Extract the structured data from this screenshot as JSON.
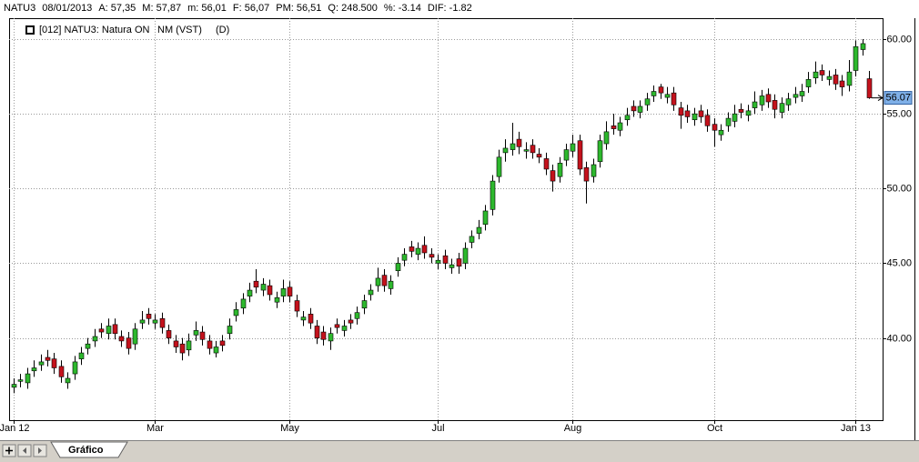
{
  "header": {
    "items": [
      "NATU3",
      "08/01/2013",
      "A: 57,35",
      "M: 57,87",
      "m: 56,01",
      "F: 56,07",
      "PM: 56,51",
      "Q: 248.500",
      "%: -3.14",
      "DIF: -1.82"
    ]
  },
  "tab": "Gráfico",
  "chart_data": {
    "type": "candlestick",
    "legend": [
      "[012] NATU3: Natura ON",
      "NM (VST)",
      "(D)"
    ],
    "categories": [
      "Jan 12",
      null,
      null,
      null,
      null,
      null,
      null,
      null,
      null,
      null,
      null,
      null,
      null,
      null,
      null,
      null,
      null,
      null,
      null,
      null,
      null,
      "Mar",
      null,
      null,
      null,
      null,
      null,
      null,
      null,
      null,
      null,
      null,
      null,
      null,
      null,
      null,
      null,
      null,
      null,
      null,
      null,
      "May",
      null,
      null,
      null,
      null,
      null,
      null,
      null,
      null,
      null,
      null,
      null,
      null,
      null,
      null,
      null,
      null,
      null,
      null,
      null,
      null,
      null,
      "Jul",
      null,
      null,
      null,
      null,
      null,
      null,
      null,
      null,
      null,
      null,
      null,
      null,
      null,
      null,
      null,
      null,
      null,
      null,
      null,
      "Aug",
      null,
      null,
      null,
      null,
      null,
      null,
      null,
      null,
      null,
      null,
      null,
      null,
      null,
      null,
      null,
      null,
      null,
      null,
      null,
      null,
      "Oct",
      null,
      null,
      null,
      null,
      null,
      null,
      null,
      null,
      null,
      null,
      null,
      null,
      null,
      null,
      null,
      null,
      null,
      null,
      null,
      null,
      "Jan 13",
      null,
      null
    ],
    "open": [
      36.7,
      37.1,
      37.0,
      37.8,
      38.2,
      38.7,
      38.6,
      38.1,
      37.0,
      37.6,
      38.6,
      39.3,
      39.8,
      40.6,
      40.3,
      40.9,
      40.1,
      40.0,
      39.6,
      41.0,
      41.6,
      41.0,
      41.3,
      40.5,
      39.8,
      39.6,
      39.2,
      40.2,
      40.4,
      39.8,
      39.0,
      39.8,
      40.3,
      41.5,
      42.0,
      42.8,
      43.8,
      43.2,
      43.5,
      42.4,
      42.8,
      43.4,
      42.5,
      41.2,
      41.6,
      40.8,
      40.4,
      39.8,
      40.9,
      40.5,
      41.2,
      41.3,
      42.0,
      42.9,
      43.5,
      44.2,
      43.3,
      44.5,
      45.2,
      46.1,
      45.6,
      46.2,
      45.6,
      45.0,
      45.5,
      44.7,
      45.3,
      45.0,
      46.4,
      47.0,
      47.6,
      48.6,
      50.8,
      52.4,
      52.6,
      53.3,
      52.5,
      52.9,
      52.3,
      52.0,
      51.2,
      50.8,
      51.9,
      52.5,
      53.2,
      51.4,
      50.8,
      51.8,
      53.0,
      54.2,
      53.9,
      54.6,
      55.5,
      55.1,
      55.6,
      56.2,
      56.8,
      56.1,
      56.4,
      55.4,
      55.2,
      54.6,
      55.2,
      54.9,
      54.3,
      53.6,
      54.2,
      54.5,
      55.3,
      54.9,
      55.4,
      55.6,
      56.3,
      55.9,
      55.1,
      55.6,
      56.1,
      56.2,
      56.8,
      57.4,
      57.9,
      57.3,
      57.6,
      57.2,
      56.9,
      57.9,
      59.3,
      57.35
    ],
    "high": [
      37.3,
      37.6,
      38.0,
      38.5,
      38.9,
      39.2,
      39.0,
      38.5,
      37.7,
      38.8,
      39.4,
      40.0,
      40.6,
      41.0,
      41.3,
      41.3,
      40.5,
      40.4,
      41.0,
      41.8,
      42.0,
      41.6,
      41.7,
      40.9,
      40.2,
      40.0,
      40.3,
      41.1,
      40.8,
      40.2,
      39.8,
      40.2,
      41.3,
      42.4,
      43.0,
      43.7,
      44.6,
      44.0,
      43.9,
      43.1,
      43.9,
      43.8,
      42.9,
      41.8,
      42.0,
      41.2,
      40.8,
      40.7,
      41.3,
      41.2,
      41.6,
      42.1,
      42.9,
      43.6,
      44.7,
      44.6,
      44.2,
      45.4,
      46.0,
      46.5,
      46.4,
      46.8,
      46.0,
      45.6,
      45.9,
      45.3,
      45.7,
      46.4,
      47.2,
      47.9,
      48.9,
      50.9,
      52.6,
      53.3,
      54.4,
      53.8,
      53.1,
      53.3,
      52.7,
      52.4,
      51.6,
      52.1,
      53.0,
      53.6,
      53.6,
      51.8,
      52.0,
      53.6,
      54.5,
      55.0,
      54.8,
      55.4,
      55.9,
      55.9,
      56.4,
      56.9,
      57.0,
      56.8,
      56.8,
      55.8,
      55.6,
      55.4,
      55.6,
      55.3,
      54.7,
      54.3,
      55.1,
      55.6,
      55.7,
      55.6,
      56.5,
      56.6,
      56.7,
      56.3,
      56.1,
      56.4,
      56.8,
      57.0,
      57.8,
      58.5,
      58.3,
      57.9,
      58.0,
      57.6,
      58.6,
      59.9,
      60.0,
      57.87
    ],
    "low": [
      36.3,
      36.7,
      36.6,
      37.4,
      37.8,
      38.1,
      37.6,
      37.0,
      36.6,
      37.2,
      38.2,
      38.9,
      39.4,
      40.0,
      39.9,
      39.9,
      39.4,
      38.9,
      39.2,
      40.6,
      40.9,
      40.6,
      40.3,
      39.6,
      39.0,
      38.5,
      38.8,
      39.8,
      39.5,
      38.9,
      38.7,
      39.1,
      39.9,
      41.1,
      41.6,
      42.4,
      43.0,
      42.8,
      42.5,
      42.0,
      42.4,
      42.4,
      41.4,
      40.8,
      40.6,
      39.6,
      39.5,
      39.2,
      40.3,
      40.1,
      40.6,
      40.9,
      41.6,
      42.5,
      43.1,
      43.1,
      42.9,
      44.1,
      44.8,
      45.4,
      45.2,
      45.3,
      45.0,
      44.6,
      44.6,
      44.3,
      44.3,
      44.6,
      46.0,
      46.6,
      47.2,
      48.2,
      50.4,
      51.8,
      52.2,
      52.3,
      52.0,
      52.0,
      51.7,
      50.9,
      49.8,
      50.4,
      51.5,
      52.1,
      50.9,
      49.0,
      50.4,
      51.4,
      52.6,
      53.6,
      53.5,
      54.2,
      54.8,
      54.7,
      55.2,
      55.8,
      56.0,
      55.7,
      55.2,
      54.0,
      54.4,
      54.2,
      54.4,
      53.8,
      52.8,
      53.2,
      53.8,
      54.1,
      54.7,
      54.5,
      55.0,
      55.2,
      55.4,
      54.7,
      54.7,
      55.2,
      55.7,
      55.8,
      56.4,
      57.0,
      57.2,
      56.9,
      56.6,
      56.2,
      56.5,
      57.5,
      58.9,
      56.01
    ],
    "close": [
      36.9,
      37.2,
      37.6,
      38.0,
      38.4,
      38.5,
      38.0,
      37.4,
      37.3,
      38.4,
      39.0,
      39.6,
      40.1,
      40.4,
      40.8,
      40.3,
      39.8,
      39.3,
      40.6,
      41.2,
      41.3,
      41.2,
      40.7,
      40.0,
      39.4,
      39.0,
      39.8,
      40.5,
      39.9,
      39.3,
      39.4,
      39.5,
      40.8,
      41.9,
      42.6,
      43.2,
      43.4,
      43.6,
      42.9,
      42.7,
      43.3,
      42.8,
      41.8,
      41.4,
      41.0,
      40.0,
      39.9,
      40.3,
      40.7,
      40.8,
      41.0,
      41.7,
      42.5,
      43.2,
      44.0,
      43.5,
      43.8,
      45.0,
      45.6,
      45.8,
      46.0,
      45.7,
      45.4,
      45.2,
      45.0,
      44.9,
      44.8,
      46.0,
      46.8,
      47.4,
      48.5,
      50.5,
      52.1,
      52.7,
      53.0,
      52.8,
      52.6,
      52.4,
      52.1,
      51.3,
      50.5,
      51.7,
      52.6,
      53.0,
      51.3,
      50.5,
      51.6,
      53.2,
      53.8,
      54.0,
      54.4,
      54.9,
      55.2,
      55.5,
      56.0,
      56.5,
      56.4,
      56.3,
      55.6,
      54.9,
      54.8,
      55.0,
      54.8,
      54.2,
      53.9,
      53.9,
      54.7,
      55.0,
      55.1,
      55.2,
      55.8,
      56.2,
      55.8,
      55.3,
      55.7,
      56.0,
      56.3,
      56.5,
      57.3,
      57.8,
      57.6,
      57.5,
      57.0,
      56.8,
      57.8,
      59.5,
      59.7,
      56.07
    ],
    "colors": {
      "up": "#2db82d",
      "down": "#c4121c"
    },
    "ylim": [
      34.5,
      61.4
    ],
    "yticks": [
      {
        "value": 40,
        "label": "40.00"
      },
      {
        "value": 45,
        "label": "45.00"
      },
      {
        "value": 50,
        "label": "50.00"
      },
      {
        "value": 55,
        "label": "55.00"
      },
      {
        "value": 60,
        "label": "60.00"
      }
    ],
    "grid": true
  }
}
